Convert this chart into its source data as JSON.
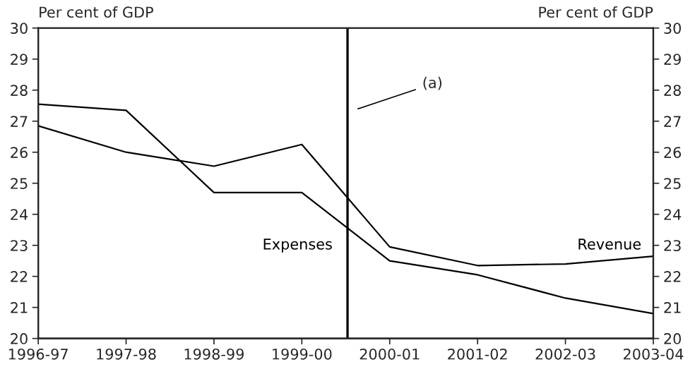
{
  "chart_data": {
    "type": "line",
    "ylabel": "Per cent of GDP",
    "y2label": "Per cent of GDP",
    "categories": [
      "1996-97",
      "1997-98",
      "1998-99",
      "1999-00",
      "2000-01",
      "2001-02",
      "2002-03",
      "2003-04"
    ],
    "series": [
      {
        "name": "Expenses",
        "color": "#000000",
        "values": [
          27.55,
          27.35,
          24.7,
          24.7,
          22.5,
          22.05,
          21.3,
          20.8
        ]
      },
      {
        "name": "Revenue",
        "color": "#000000",
        "values": [
          26.85,
          26.0,
          25.55,
          26.25,
          22.95,
          22.35,
          22.4,
          22.65
        ]
      }
    ],
    "ylim": [
      20,
      30
    ],
    "yticks": [
      20,
      21,
      22,
      23,
      24,
      25,
      26,
      27,
      28,
      29,
      30
    ],
    "y2lim": [
      20,
      30
    ],
    "y2ticks": [
      20,
      21,
      22,
      23,
      24,
      25,
      26,
      27,
      28,
      29,
      30
    ],
    "annotations": [
      "(a)"
    ],
    "grid": false,
    "legend": false,
    "marker": "none",
    "line_style": "solid"
  }
}
